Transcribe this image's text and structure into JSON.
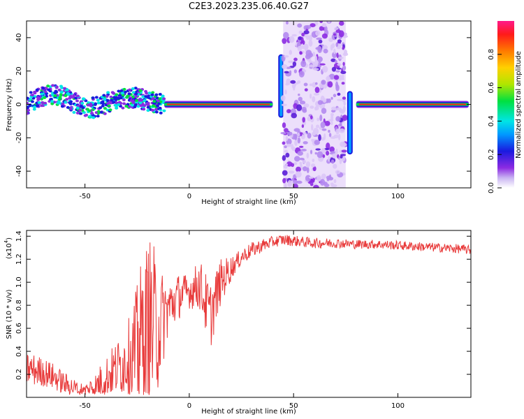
{
  "title": "C2E3.2023.235.06.40.G27",
  "chart_data": [
    {
      "type": "heatmap",
      "xlabel": "Height of straight line (km)",
      "ylabel": "Frequency (Hz)",
      "xlim": [
        -78,
        135
      ],
      "ylim": [
        -50,
        50
      ],
      "xticks": [
        -50,
        0,
        50,
        100
      ],
      "yticks": [
        -40,
        -20,
        0,
        20,
        40
      ],
      "colorbar": {
        "label": "Normalized spectral amplitude",
        "range": [
          0,
          1
        ],
        "ticks": [
          "0.0",
          "0.2",
          "0.4",
          "0.6",
          "0.8"
        ]
      },
      "features": [
        {
          "name": "broadband-noisy",
          "x_range": [
            -78,
            -12
          ],
          "freq_center": 2,
          "freq_spread": 6
        },
        {
          "name": "narrowband-tone",
          "x_range": [
            -12,
            40
          ],
          "freq_center": 0
        },
        {
          "name": "spike",
          "x": 44,
          "freq_range": [
            -8,
            30
          ]
        },
        {
          "name": "dispersed-noise",
          "x_range": [
            45,
            75
          ],
          "freq_range": [
            -50,
            50
          ]
        },
        {
          "name": "spike",
          "x": 77,
          "freq_range": [
            -30,
            8
          ]
        },
        {
          "name": "narrowband-tone",
          "x_range": [
            80,
            134
          ],
          "freq_center": 0
        }
      ]
    },
    {
      "type": "line",
      "xlabel": "Height of straight line (km)",
      "ylabel": "SNR (10 * v/v)",
      "yunit": "(x10",
      "yunit_exp": "4",
      "yunit_close": ")",
      "xlim": [
        -78,
        135
      ],
      "ylim": [
        0,
        1.45
      ],
      "xticks": [
        -50,
        0,
        50,
        100
      ],
      "yticks": [
        0.2,
        0.4,
        0.6,
        0.8,
        1.0,
        1.2,
        1.4
      ],
      "ytick_labels": [
        "0.2",
        "0.4",
        "0.6",
        "0.8",
        "1.0",
        "1.2",
        "1.4"
      ],
      "line_color": "#e83a3a",
      "envelope": {
        "x": [
          -78,
          -70,
          -65,
          -60,
          -55,
          -50,
          -45,
          -40,
          -35,
          -30,
          -25,
          -22,
          -18,
          -15,
          -10,
          -5,
          0,
          5,
          10,
          15,
          20,
          25,
          30,
          35,
          40,
          45,
          50,
          60,
          70,
          80,
          90,
          100,
          110,
          120,
          130,
          134
        ],
        "y": [
          0.25,
          0.22,
          0.18,
          0.12,
          0.08,
          0.06,
          0.1,
          0.18,
          0.25,
          0.32,
          0.4,
          0.55,
          0.62,
          0.6,
          0.78,
          0.88,
          0.92,
          0.98,
          0.7,
          1.0,
          1.12,
          1.22,
          1.28,
          1.32,
          1.35,
          1.37,
          1.36,
          1.34,
          1.34,
          1.33,
          1.33,
          1.32,
          1.31,
          1.3,
          1.29,
          1.28
        ]
      },
      "noise_amplitude": {
        "x": [
          -78,
          -60,
          -50,
          -40,
          -30,
          -22,
          -18,
          -15,
          -10,
          0,
          10,
          15,
          22,
          40,
          80,
          134
        ],
        "y": [
          0.15,
          0.1,
          0.06,
          0.18,
          0.3,
          0.75,
          0.8,
          0.55,
          0.25,
          0.15,
          0.3,
          0.2,
          0.08,
          0.05,
          0.04,
          0.04
        ]
      }
    }
  ]
}
